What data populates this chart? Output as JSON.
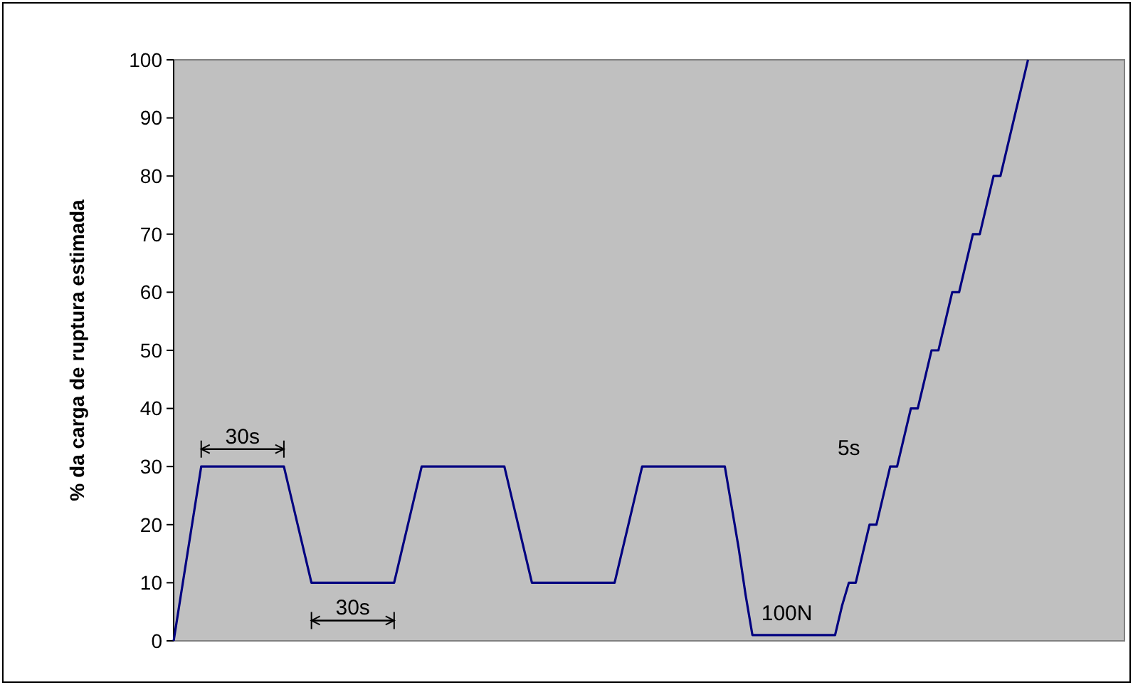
{
  "chart_data": {
    "type": "line",
    "ylabel": "% da carga de ruptura estimada",
    "ylim": [
      0,
      100
    ],
    "yticks": [
      0,
      10,
      20,
      30,
      40,
      50,
      60,
      70,
      80,
      90,
      100
    ],
    "grid": false,
    "line_style": "solid",
    "tick_labels": "y",
    "categories": [
      null,
      null,
      null,
      null,
      null,
      null,
      null,
      null,
      null,
      null,
      null,
      null,
      null,
      null,
      null,
      null,
      null,
      null,
      null,
      null,
      null,
      null,
      null,
      null,
      null,
      null,
      null,
      null,
      null,
      null,
      null,
      null,
      null,
      null,
      null,
      null,
      null,
      null,
      null,
      null,
      null,
      null,
      null,
      null,
      null,
      null,
      null,
      null,
      null,
      null,
      null,
      null,
      null,
      null,
      null,
      null,
      null,
      null,
      null,
      null,
      null,
      null,
      null,
      null,
      null,
      null,
      null,
      null,
      null,
      null,
      null,
      null,
      null,
      null,
      null,
      null,
      null,
      null,
      null,
      null,
      null,
      null,
      null,
      null,
      null,
      null,
      null,
      null,
      null,
      null,
      null,
      null,
      null,
      null,
      null,
      null,
      null,
      null,
      null,
      null,
      null,
      null,
      null,
      null,
      null,
      null,
      null,
      null,
      null,
      null,
      null,
      null,
      null,
      null,
      null,
      null,
      null,
      null,
      null,
      null,
      null,
      null,
      null,
      null,
      null,
      null,
      null,
      null,
      null,
      null,
      null,
      null,
      null,
      null,
      null,
      null,
      null,
      null,
      null
    ],
    "series": [
      {
        "color": "#000080",
        "values": [
          0,
          7.5,
          15,
          22.5,
          30,
          30,
          30,
          30,
          30,
          30,
          30,
          30,
          30,
          30,
          30,
          30,
          30,
          25,
          20,
          15,
          10,
          10,
          10,
          10,
          10,
          10,
          10,
          10,
          10,
          10,
          10,
          10,
          10,
          15,
          20,
          25,
          30,
          30,
          30,
          30,
          30,
          30,
          30,
          30,
          30,
          30,
          30,
          30,
          30,
          25,
          20,
          15,
          10,
          10,
          10,
          10,
          10,
          10,
          10,
          10,
          10,
          10,
          10,
          10,
          10,
          15,
          20,
          25,
          30,
          30,
          30,
          30,
          30,
          30,
          30,
          30,
          30,
          30,
          30,
          30,
          30,
          23,
          16,
          8,
          1,
          1,
          1,
          1,
          1,
          1,
          1,
          1,
          1,
          1,
          1,
          1,
          1,
          6,
          10,
          10,
          15,
          20,
          20,
          25,
          30,
          30,
          35,
          40,
          40,
          45,
          50,
          50,
          55,
          60,
          60,
          65,
          70,
          70,
          75,
          80,
          80,
          85,
          90,
          95,
          100,
          null,
          null,
          null,
          null,
          null,
          null,
          null,
          null,
          null,
          null,
          null,
          null,
          null,
          null
        ]
      }
    ],
    "annotations": [
      "30s",
      "30s",
      "100N",
      "5s"
    ]
  }
}
